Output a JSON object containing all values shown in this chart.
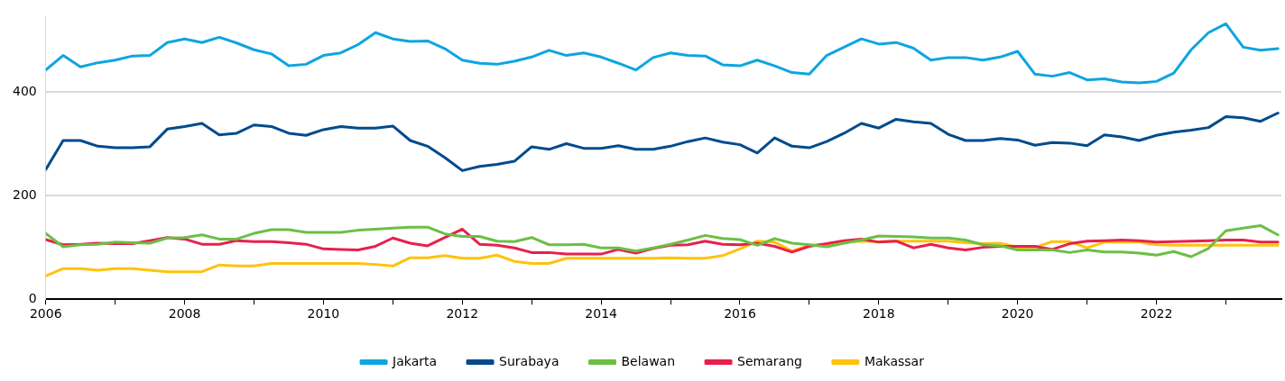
{
  "chart_data": {
    "type": "line",
    "x": [
      2006,
      2006.25,
      2006.5,
      2006.75,
      2007,
      2007.25,
      2007.5,
      2007.75,
      2008,
      2008.25,
      2008.5,
      2008.75,
      2009,
      2009.25,
      2009.5,
      2009.75,
      2010,
      2010.25,
      2010.5,
      2010.75,
      2011,
      2011.25,
      2011.5,
      2011.75,
      2012,
      2012.25,
      2012.5,
      2012.75,
      2013,
      2013.25,
      2013.5,
      2013.75,
      2014,
      2014.25,
      2014.5,
      2014.75,
      2015,
      2015.25,
      2015.5,
      2015.75,
      2016,
      2016.25,
      2016.5,
      2016.75,
      2017,
      2017.25,
      2017.5,
      2017.75,
      2018,
      2018.25,
      2018.5,
      2018.75,
      2019,
      2019.25,
      2019.5,
      2019.75,
      2020,
      2020.25,
      2020.5,
      2020.75,
      2021,
      2021.25,
      2021.5,
      2021.75,
      2022,
      2022.25,
      2022.5,
      2022.75,
      2023,
      2023.25,
      2023.5,
      2023.75
    ],
    "series": [
      {
        "name": "Jakarta",
        "color": "#0ea5e0",
        "values": [
          442,
          470,
          448,
          456,
          461,
          469,
          470,
          495,
          502,
          495,
          505,
          494,
          481,
          473,
          450,
          453,
          470,
          475,
          491,
          514,
          502,
          497,
          498,
          483,
          461,
          455,
          453,
          459,
          467,
          480,
          470,
          475,
          467,
          455,
          442,
          466,
          475,
          470,
          469,
          452,
          450,
          461,
          450,
          437,
          434,
          470,
          486,
          502,
          492,
          495,
          484,
          461,
          466,
          466,
          461,
          467,
          478,
          434,
          430,
          437,
          423,
          425,
          419,
          417,
          420,
          436,
          481,
          514,
          531,
          486,
          480,
          483
        ]
      },
      {
        "name": "Surabaya",
        "color": "#004b8d",
        "values": [
          250,
          306,
          306,
          295,
          292,
          292,
          294,
          328,
          333,
          339,
          317,
          320,
          336,
          333,
          320,
          316,
          327,
          333,
          330,
          330,
          334,
          306,
          295,
          273,
          248,
          256,
          260,
          266,
          294,
          289,
          300,
          291,
          291,
          296,
          289,
          289,
          295,
          304,
          311,
          303,
          298,
          282,
          311,
          295,
          292,
          304,
          320,
          339,
          330,
          347,
          342,
          339,
          318,
          306,
          306,
          310,
          307,
          297,
          302,
          301,
          296,
          317,
          313,
          306,
          316,
          322,
          326,
          331,
          352,
          350,
          343,
          359
        ]
      },
      {
        "name": "Belawan",
        "color": "#6cbf45",
        "values": [
          127,
          101,
          105,
          106,
          110,
          109,
          108,
          118,
          119,
          124,
          116,
          116,
          127,
          134,
          134,
          129,
          129,
          129,
          133,
          135,
          137,
          139,
          139,
          126,
          121,
          121,
          112,
          111,
          119,
          105,
          105,
          106,
          99,
          99,
          93,
          99,
          106,
          114,
          123,
          117,
          115,
          104,
          117,
          108,
          105,
          101,
          108,
          114,
          122,
          121,
          120,
          118,
          118,
          114,
          105,
          103,
          95,
          95,
          95,
          90,
          95,
          91,
          91,
          89,
          85,
          92,
          82,
          98,
          132,
          137,
          142,
          124
        ]
      },
      {
        "name": "Semarang",
        "color": "#e8204e",
        "values": [
          115,
          105,
          106,
          108,
          107,
          107,
          113,
          119,
          116,
          106,
          106,
          113,
          111,
          111,
          109,
          106,
          97,
          96,
          95,
          102,
          118,
          108,
          103,
          119,
          135,
          106,
          104,
          99,
          90,
          90,
          87,
          87,
          87,
          96,
          89,
          98,
          104,
          105,
          112,
          106,
          105,
          108,
          102,
          91,
          102,
          107,
          113,
          116,
          110,
          112,
          99,
          106,
          99,
          95,
          100,
          102,
          102,
          102,
          96,
          107,
          112,
          113,
          114,
          113,
          110,
          111,
          112,
          113,
          114,
          114,
          110,
          110
        ]
      },
      {
        "name": "Makassar",
        "color": "#ffc20e",
        "values": [
          45,
          59,
          59,
          56,
          59,
          59,
          56,
          53,
          53,
          53,
          66,
          64,
          64,
          69,
          69,
          69,
          69,
          69,
          69,
          67,
          64,
          80,
          80,
          84,
          79,
          79,
          85,
          73,
          69,
          69,
          79,
          79,
          79,
          79,
          79,
          79,
          80,
          79,
          79,
          84,
          97,
          112,
          110,
          93,
          104,
          105,
          110,
          112,
          111,
          112,
          112,
          112,
          112,
          109,
          107,
          108,
          100,
          100,
          111,
          111,
          99,
          110,
          110,
          110,
          105,
          104,
          104,
          104,
          104,
          104,
          104,
          104
        ]
      }
    ],
    "xlim": [
      2006,
      2023.8
    ],
    "xticks": [
      2006,
      {
        "value": 2007,
        "label": null
      },
      2008,
      {
        "value": 2009,
        "label": null
      },
      2010,
      {
        "value": 2011,
        "label": null
      },
      2012,
      {
        "value": 2013,
        "label": null
      },
      2014,
      {
        "value": 2015,
        "label": null
      },
      2016,
      {
        "value": 2017,
        "label": null
      },
      2018,
      {
        "value": 2019,
        "label": null
      },
      2020,
      {
        "value": 2021,
        "label": null
      },
      2022,
      {
        "value": 2023,
        "label": null
      }
    ],
    "ylim": [
      0,
      545
    ],
    "yticks": [
      0,
      200,
      400
    ],
    "grid": "y",
    "legend": "bottom",
    "marker": "none",
    "line_style": "solid"
  }
}
